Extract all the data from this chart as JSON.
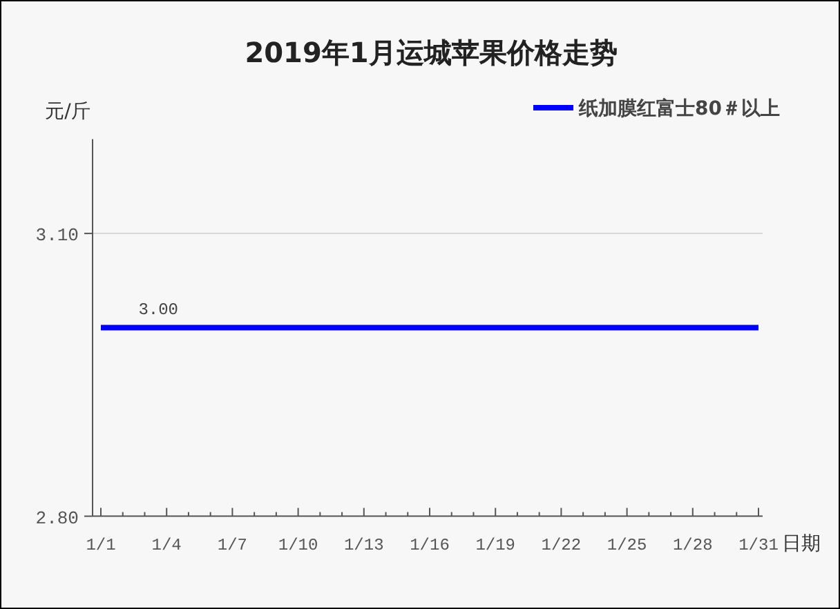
{
  "chart_data": {
    "type": "line",
    "title": "2019年1月运城苹果价格走势",
    "ylabel": "元/斤",
    "xlabel": "日期",
    "categories": [
      "1/1",
      null,
      null,
      "1/4",
      null,
      null,
      "1/7",
      null,
      null,
      "1/10",
      null,
      null,
      "1/13",
      null,
      null,
      "1/16",
      null,
      null,
      "1/19",
      null,
      null,
      "1/22",
      null,
      null,
      "1/25",
      null,
      null,
      "1/28",
      null,
      null,
      "1/31"
    ],
    "series": [
      {
        "name": "纸加膜红富士80＃以上",
        "color": "#0000ff",
        "values": [
          3.0,
          3.0,
          3.0,
          3.0,
          3.0,
          3.0,
          3.0,
          3.0,
          3.0,
          3.0,
          3.0,
          3.0,
          3.0,
          3.0,
          3.0,
          3.0,
          3.0,
          3.0,
          3.0,
          3.0,
          3.0,
          3.0,
          3.0,
          3.0,
          3.0,
          3.0,
          3.0,
          3.0,
          3.0,
          3.0,
          3.0
        ],
        "value_labels": [
          null,
          null,
          null,
          "3.00",
          null,
          null,
          null,
          null,
          null,
          null,
          null,
          null,
          null,
          null,
          null,
          null,
          null,
          null,
          null,
          null,
          null,
          null,
          null,
          null,
          null,
          null,
          null,
          null,
          null,
          null,
          null
        ]
      }
    ],
    "ylim": [
      2.8,
      3.2
    ],
    "yticks": [
      {
        "value": 2.8,
        "label": "2.80"
      },
      {
        "value": 3.1,
        "label": "3.10"
      }
    ],
    "grid": "y",
    "legend": "top right",
    "marker": "none",
    "line_style": "solid"
  }
}
